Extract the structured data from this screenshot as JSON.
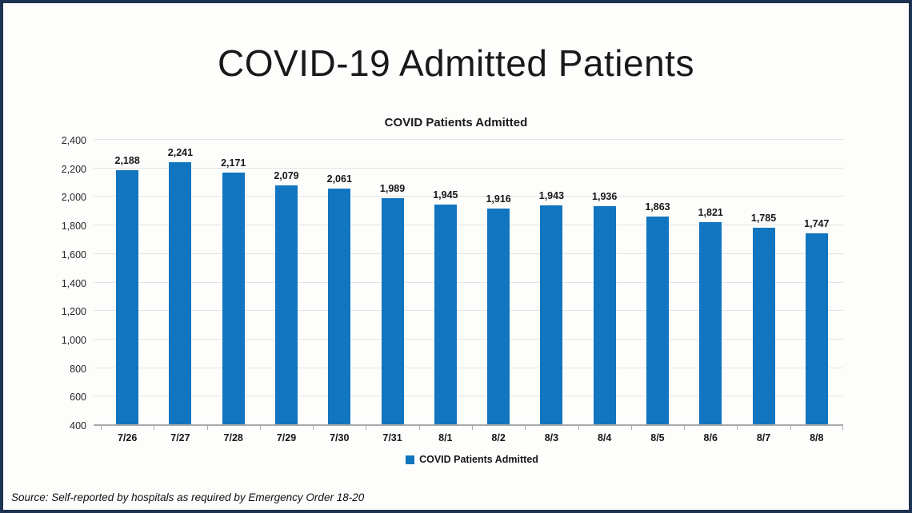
{
  "frame": {
    "border_color": "#1e3352",
    "background_color": "#fdfdfb"
  },
  "title": "COVID-19 Admitted Patients",
  "chart_data": {
    "type": "bar",
    "title": "COVID Patients Admitted",
    "categories": [
      "7/26",
      "7/27",
      "7/28",
      "7/29",
      "7/30",
      "7/31",
      "8/1",
      "8/2",
      "8/3",
      "8/4",
      "8/5",
      "8/6",
      "8/7",
      "8/8"
    ],
    "values": [
      2188,
      2241,
      2171,
      2079,
      2061,
      1989,
      1945,
      1916,
      1943,
      1936,
      1863,
      1821,
      1785,
      1747
    ],
    "data_labels": [
      "2,188",
      "2,241",
      "2,171",
      "2,079",
      "2,061",
      "1,989",
      "1,945",
      "1,916",
      "1,943",
      "1,936",
      "1,863",
      "1,821",
      "1,785",
      "1,747"
    ],
    "xlabel": "",
    "ylabel": "",
    "ylim": [
      400,
      2400
    ],
    "ytick_step": 200,
    "ytick_labels": [
      "400",
      "600",
      "800",
      "1,000",
      "1,200",
      "1,400",
      "1,600",
      "1,800",
      "2,000",
      "2,200",
      "2,400"
    ],
    "grid": true,
    "bar_color": "#1175c0",
    "gridline_color": "#e4e4e4",
    "axis_color": "#a9a9a9",
    "legend": {
      "position": "bottom",
      "entries": [
        "COVID Patients Admitted"
      ]
    }
  },
  "footer": {
    "source": "Source: Self-reported by hospitals as required by Emergency Order 18-20"
  }
}
